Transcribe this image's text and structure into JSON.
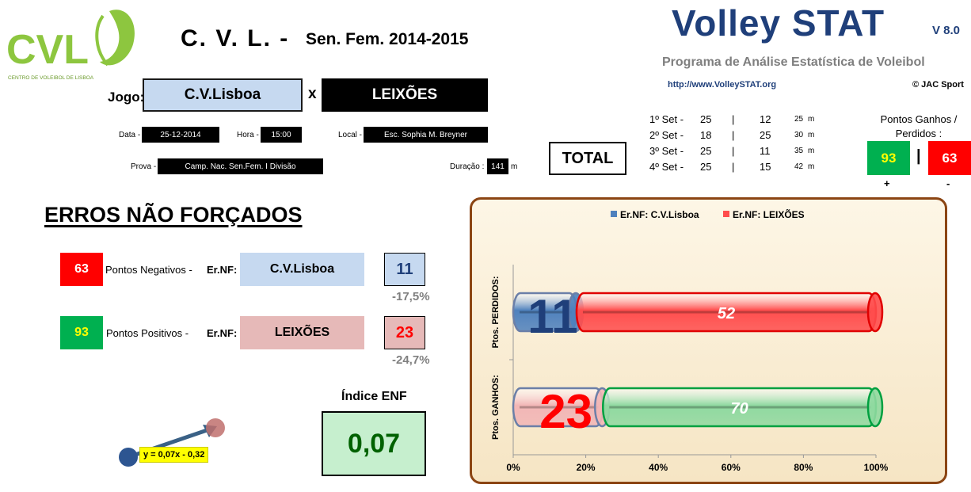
{
  "logo": {
    "text": "CVL",
    "subtitle": "CENTRO DE VOLEIBOL DE LISBOA"
  },
  "header": {
    "team": "C. V. L. -",
    "season": "Sen. Fem. 2014-2015",
    "app_title": "Volley STAT",
    "app_version": "V 8.0",
    "app_subtitle": "Programa de Análise Estatística de Voleibol",
    "app_url": "http://www.VolleySTAT.org",
    "copyright": "© JAC Sport"
  },
  "match": {
    "jogo_label": "Jogo:",
    "home": "C.V.Lisboa",
    "vs": "x",
    "away": "LEIXÕES",
    "data_label": "Data -",
    "data": "25-12-2014",
    "hora_label": "Hora -",
    "hora": "15:00",
    "local_label": "Local -",
    "local": "Esc. Sophia M. Breyner",
    "prova_label": "Prova -",
    "prova": "Camp. Nac. Sen.Fem. I Divisão",
    "duracao_label": "Duração :",
    "duracao": "141",
    "duracao_unit": "m",
    "total_label": "TOTAL"
  },
  "sets": [
    {
      "name": "1º Set -",
      "home": "25",
      "sep": "|",
      "away": "12",
      "min": "25",
      "unit": "m"
    },
    {
      "name": "2º Set -",
      "home": "18",
      "sep": "|",
      "away": "25",
      "min": "30",
      "unit": "m"
    },
    {
      "name": "3º Set -",
      "home": "25",
      "sep": "|",
      "away": "11",
      "min": "35",
      "unit": "m"
    },
    {
      "name": "4º Set -",
      "home": "25",
      "sep": "|",
      "away": "15",
      "min": "42",
      "unit": "m"
    }
  ],
  "points": {
    "label_line1": "Pontos Ganhos /",
    "label_line2": "Perdidos :",
    "won": "93",
    "sep": "|",
    "lost": "63",
    "plus": "+",
    "minus": "-"
  },
  "errors": {
    "title": "ERROS NÃO FORÇADOS",
    "neg_value": "63",
    "neg_label": "Pontos Negativos -",
    "pos_value": "93",
    "pos_label": "Pontos Positivos -",
    "ernf_label": "Er.NF:",
    "home_team": "C.V.Lisboa",
    "away_team": "LEIXÕES",
    "home_errors": "11",
    "away_errors": "23",
    "home_pct": "-17,5%",
    "away_pct": "-24,7%",
    "indice_label": "Índice ENF",
    "indice_value": "0,07",
    "trend_equation": "y = 0,07x - 0,32"
  },
  "colors": {
    "home_blue": "#4f81bd",
    "away_red": "#ff4d4d",
    "won_green": "#00b050",
    "lost_red": "#ff0000",
    "title_blue": "#1f3f7a"
  },
  "chart_data": {
    "type": "bar",
    "orientation": "horizontal",
    "stacked": "percent",
    "categories": [
      "Ptos. PERDIDOS:",
      "Ptos. GANHOS:"
    ],
    "series": [
      {
        "name": "Er.NF: C.V.Lisboa",
        "values": [
          11,
          23
        ],
        "color": "#4f81bd"
      },
      {
        "name": "Er.NF: LEIXÕES",
        "values": [
          52,
          70
        ],
        "color": "#ff4d4d"
      }
    ],
    "segment_colors": [
      [
        "#4f81bd",
        "#ff4d4d"
      ],
      [
        "#f2b6b6",
        "#8fd9a0"
      ]
    ],
    "label_colors": [
      [
        "#1f3f7a",
        "#ffffff"
      ],
      [
        "#ff0000",
        "#ffffff"
      ]
    ],
    "x_ticks": [
      "0%",
      "20%",
      "40%",
      "60%",
      "80%",
      "100%"
    ],
    "xlim": [
      0,
      100
    ],
    "legend_position": "top"
  }
}
